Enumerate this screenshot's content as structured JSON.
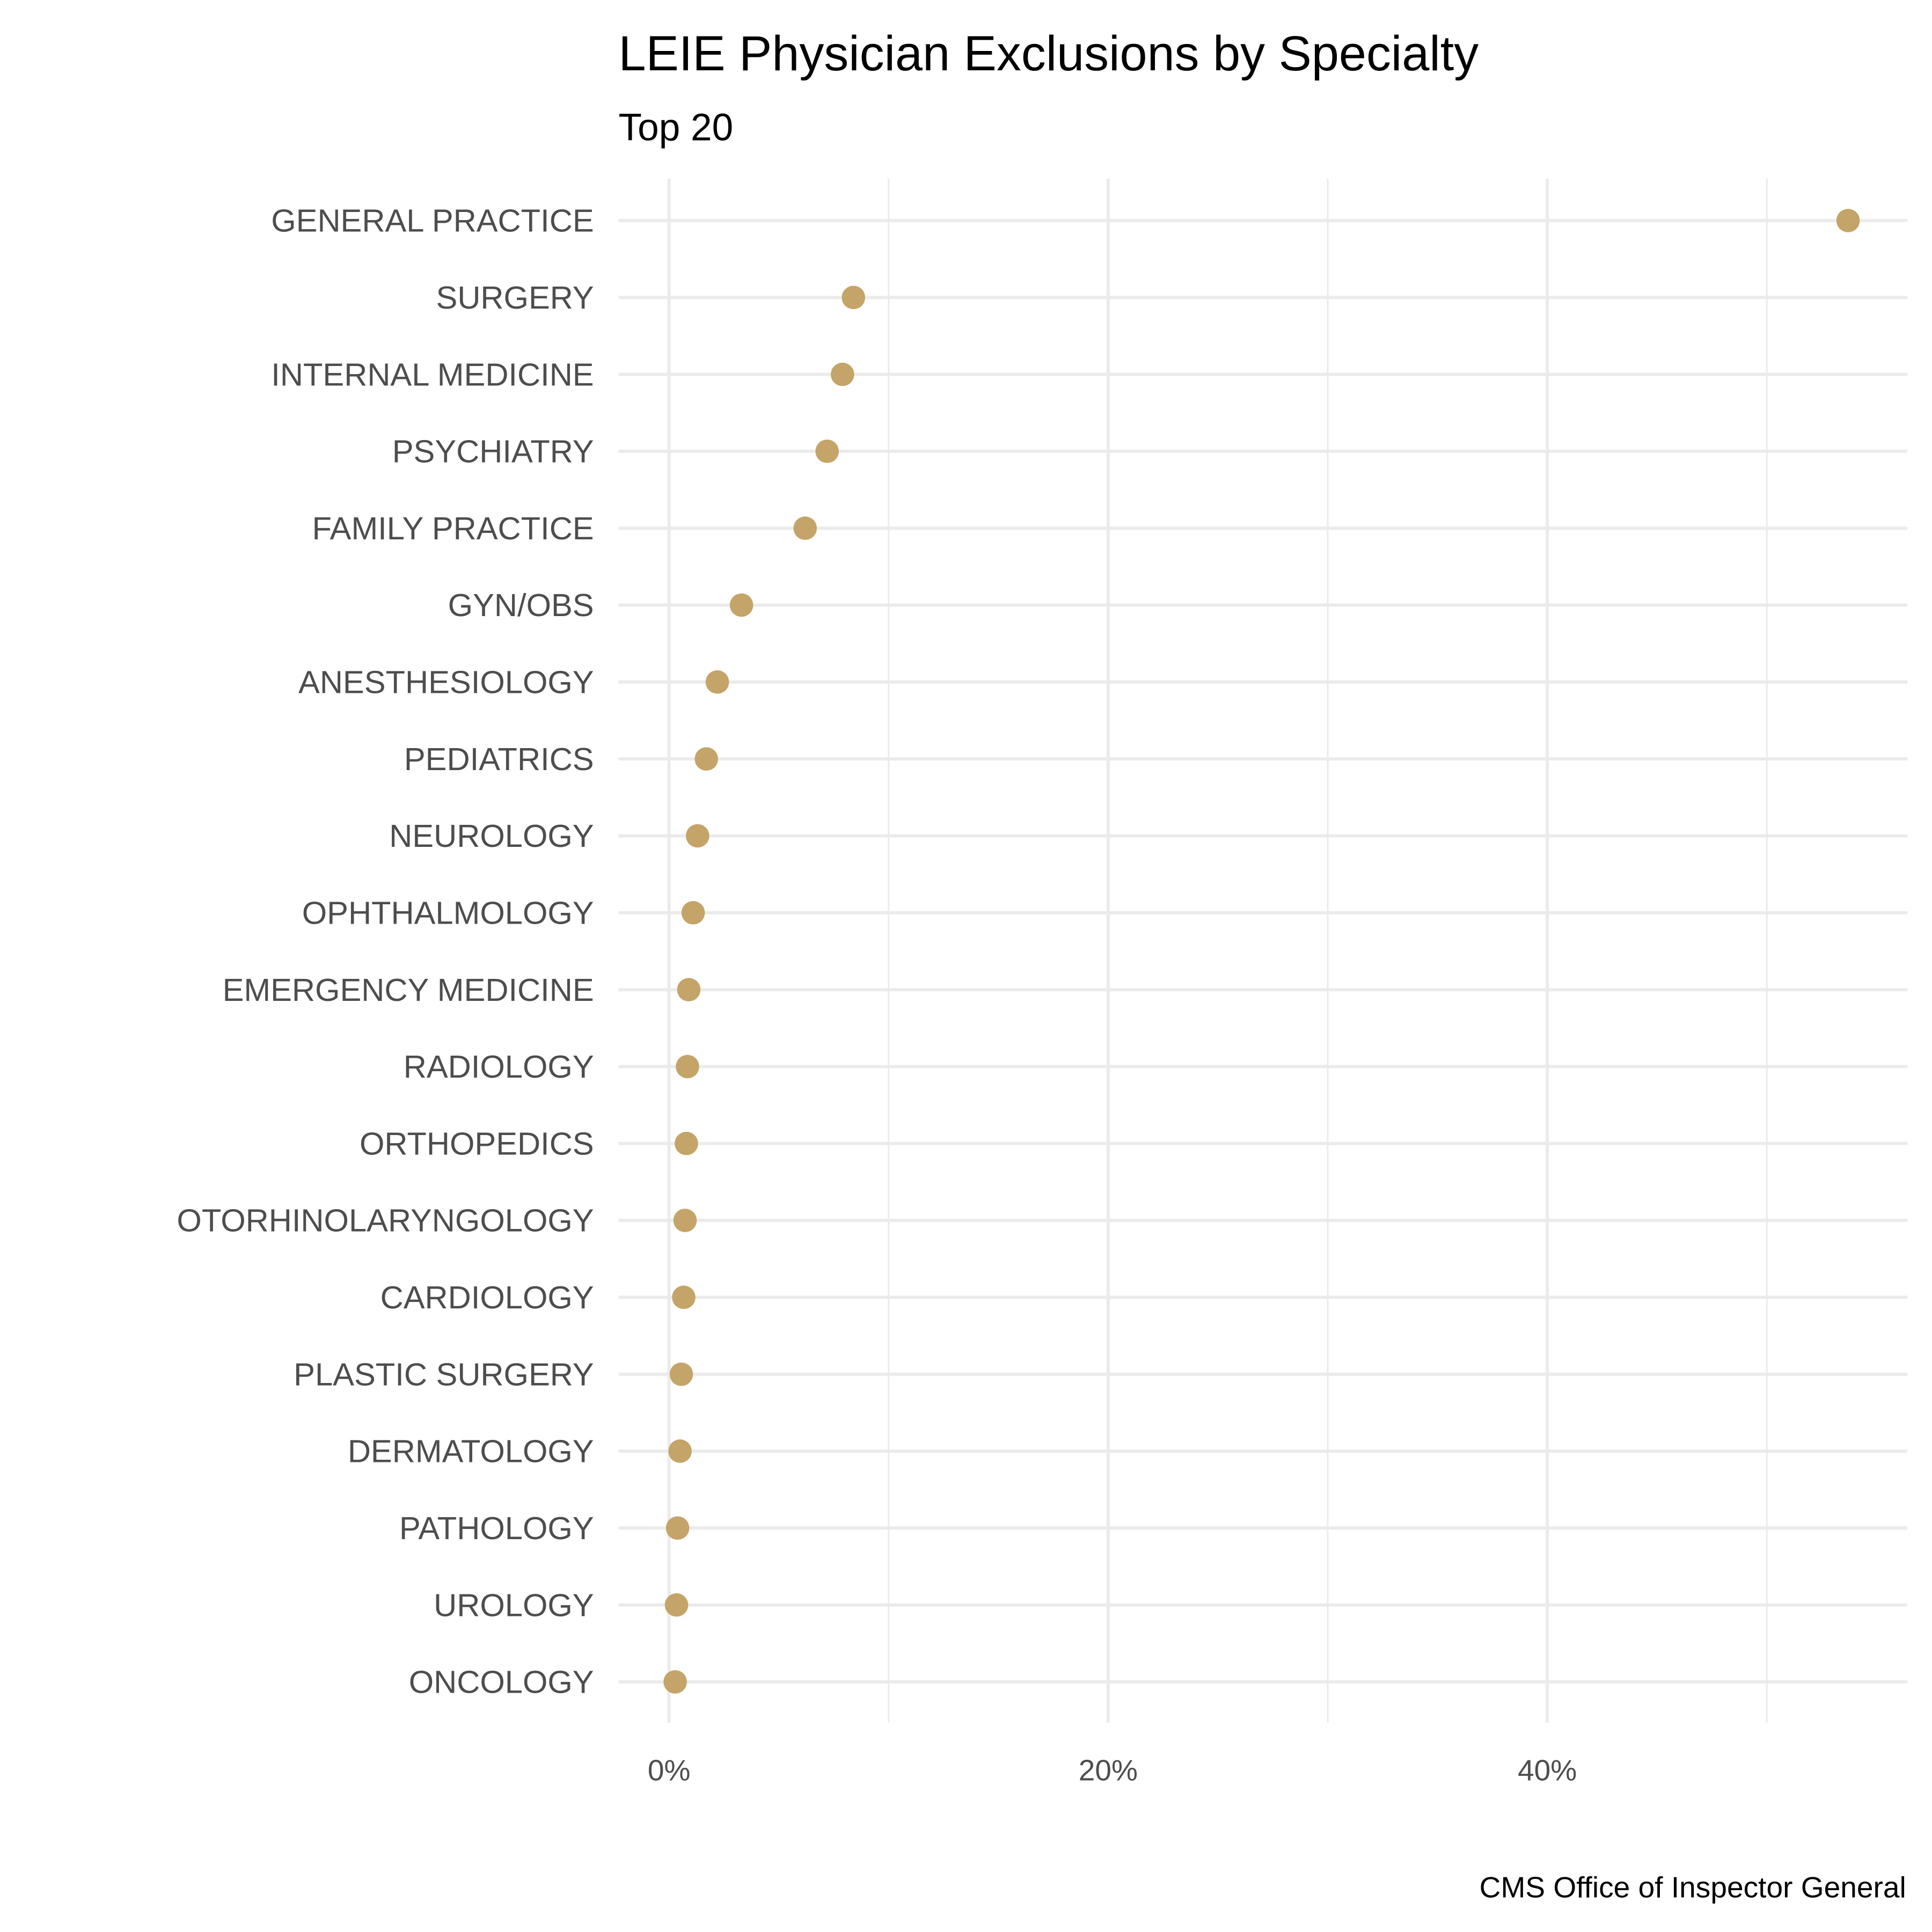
{
  "chart_data": {
    "type": "scatter",
    "title": "LEIE Physician Exclusions by Specialty",
    "subtitle": "Top 20",
    "caption": "CMS Office of Inspector General",
    "xlabel": "",
    "ylabel": "",
    "xlim": [
      -2.3,
      56.4
    ],
    "x_ticks": [
      0,
      20,
      40
    ],
    "x_tick_labels": [
      "0%",
      "20%",
      "40%"
    ],
    "x_minor_ticks": [
      10,
      30,
      50
    ],
    "grid": true,
    "point_color": "#C4A468",
    "categories": [
      "GENERAL PRACTICE",
      "SURGERY",
      "INTERNAL MEDICINE",
      "PSYCHIATRY",
      "FAMILY PRACTICE",
      "GYN/OBS",
      "ANESTHESIOLOGY",
      "PEDIATRICS",
      "NEUROLOGY",
      "OPHTHALMOLOGY",
      "EMERGENCY MEDICINE",
      "RADIOLOGY",
      "ORTHOPEDICS",
      "OTORHINOLARYNGOLOGY",
      "CARDIOLOGY",
      "PLASTIC SURGERY",
      "DERMATOLOGY",
      "PATHOLOGY",
      "UROLOGY",
      "ONCOLOGY"
    ],
    "values": [
      53.7,
      8.4,
      7.9,
      7.2,
      6.2,
      3.3,
      2.2,
      1.7,
      1.3,
      1.1,
      0.9,
      0.84,
      0.79,
      0.73,
      0.67,
      0.56,
      0.5,
      0.39,
      0.34,
      0.28
    ]
  }
}
